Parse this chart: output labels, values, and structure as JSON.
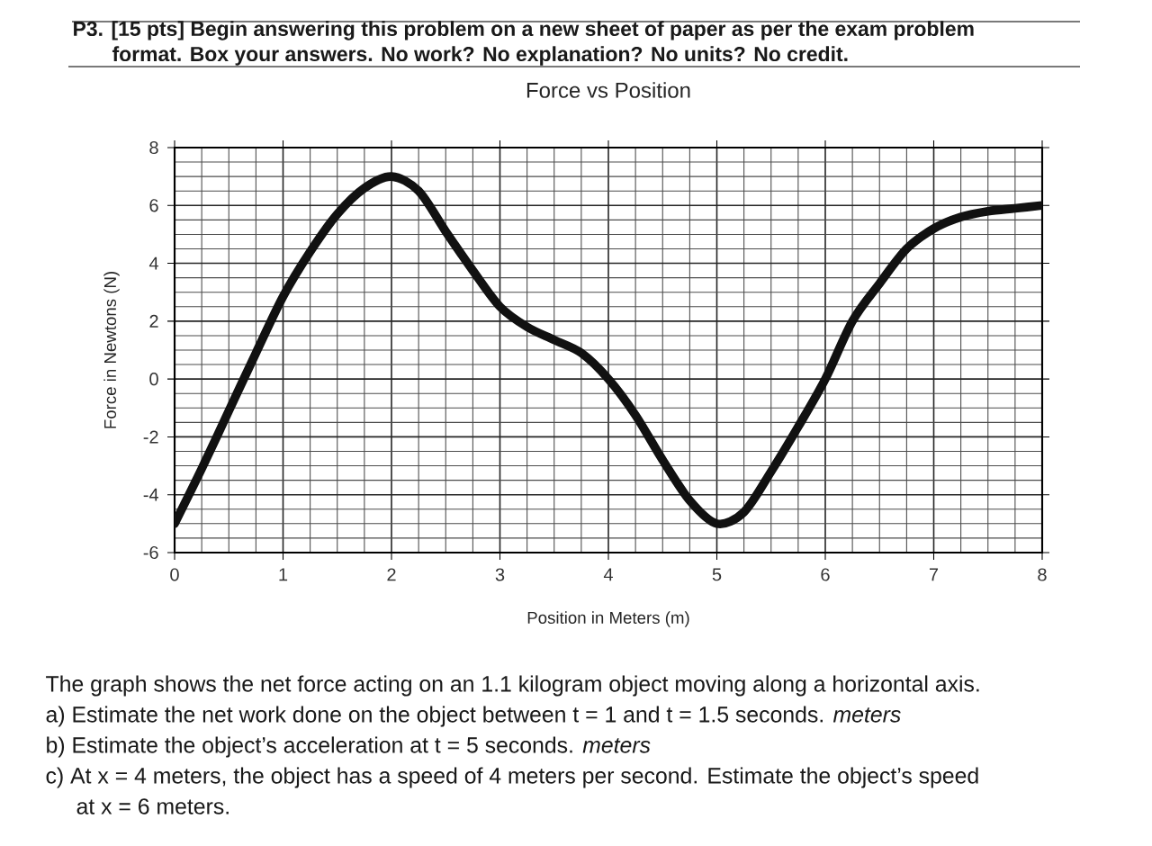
{
  "chart_data": {
    "type": "line",
    "title": "Force vs Position",
    "xlabel": "Position in Meters (m)",
    "ylabel": "Force in Newtons (N)",
    "x": [
      0,
      0.25,
      0.5,
      0.75,
      1,
      1.25,
      1.5,
      1.75,
      2,
      2.25,
      2.5,
      2.75,
      3,
      3.25,
      3.5,
      3.75,
      4,
      4.25,
      4.5,
      4.75,
      5,
      5.25,
      5.5,
      5.75,
      6,
      6.25,
      6.5,
      6.75,
      7,
      7.25,
      7.5,
      7.75,
      8
    ],
    "values": [
      -5.0,
      -3.1,
      -1.1,
      0.9,
      2.85,
      4.4,
      5.7,
      6.6,
      7.0,
      6.5,
      5.1,
      3.75,
      2.5,
      1.8,
      1.35,
      0.9,
      0.0,
      -1.25,
      -2.8,
      -4.2,
      -5.0,
      -4.6,
      -3.2,
      -1.65,
      0.0,
      2.0,
      3.3,
      4.5,
      5.2,
      5.6,
      5.8,
      5.9,
      6.0
    ],
    "color": "#111111",
    "xlim": [
      0,
      8
    ],
    "ylim": [
      -6,
      8
    ],
    "xticks": [
      0,
      1,
      2,
      3,
      4,
      5,
      6,
      7,
      8
    ],
    "yticks": [
      -6,
      -4,
      -2,
      0,
      2,
      4,
      6,
      8
    ],
    "grid": true,
    "annotations": [
      "P3. [15 pts] Begin answering this problem on a new sheet of paper as per the exam problem",
      "format. Box your answers. No work? No explanation? No units? No credit.",
      "The graph shows the net force acting on an 1.1 kilogram object moving along a horizontal axis.",
      "a) Estimate the net work done on the object between t = 1 and t = 1.5 seconds. *meters*",
      "b) Estimate the object’s acceleration at t = 5 seconds. *meters*",
      "c) At x = 4 meters, the object has a speed of 4 meters per second. Estimate the object’s speed",
      "at x = 6 meters."
    ]
  }
}
